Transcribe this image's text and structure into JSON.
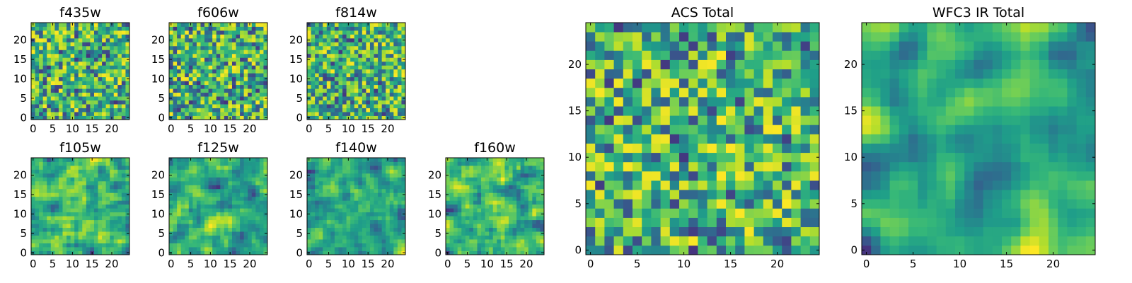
{
  "figure_title": "",
  "chart_data": [
    {
      "type": "heatmap",
      "title": "f435w",
      "grid": [
        25,
        25
      ],
      "colormap": "viridis",
      "seed": 11,
      "smooth": 0,
      "x_ticks": [
        0,
        5,
        10,
        15,
        20
      ],
      "y_ticks": [
        0,
        5,
        10,
        15,
        20
      ],
      "xlim": [
        0,
        24
      ],
      "ylim": [
        0,
        24
      ]
    },
    {
      "type": "heatmap",
      "title": "f606w",
      "grid": [
        25,
        25
      ],
      "colormap": "viridis",
      "seed": 22,
      "smooth": 0,
      "x_ticks": [
        0,
        5,
        10,
        15,
        20
      ],
      "y_ticks": [
        0,
        5,
        10,
        15,
        20
      ],
      "xlim": [
        0,
        24
      ],
      "ylim": [
        0,
        24
      ]
    },
    {
      "type": "heatmap",
      "title": "f814w",
      "grid": [
        25,
        25
      ],
      "colormap": "viridis",
      "seed": 33,
      "smooth": 0,
      "x_ticks": [
        0,
        5,
        10,
        15,
        20
      ],
      "y_ticks": [
        0,
        5,
        10,
        15,
        20
      ],
      "xlim": [
        0,
        24
      ],
      "ylim": [
        0,
        24
      ]
    },
    {
      "type": "heatmap",
      "title": "f105w",
      "grid": [
        25,
        25
      ],
      "colormap": "viridis",
      "seed": 44,
      "smooth": 1,
      "x_ticks": [
        0,
        5,
        10,
        15,
        20
      ],
      "y_ticks": [
        0,
        5,
        10,
        15,
        20
      ],
      "xlim": [
        0,
        24
      ],
      "ylim": [
        0,
        24
      ]
    },
    {
      "type": "heatmap",
      "title": "f125w",
      "grid": [
        25,
        25
      ],
      "colormap": "viridis",
      "seed": 55,
      "smooth": 1,
      "x_ticks": [
        0,
        5,
        10,
        15,
        20
      ],
      "y_ticks": [
        0,
        5,
        10,
        15,
        20
      ],
      "xlim": [
        0,
        24
      ],
      "ylim": [
        0,
        24
      ]
    },
    {
      "type": "heatmap",
      "title": "f140w",
      "grid": [
        25,
        25
      ],
      "colormap": "viridis",
      "seed": 66,
      "smooth": 1,
      "x_ticks": [
        0,
        5,
        10,
        15,
        20
      ],
      "y_ticks": [
        0,
        5,
        10,
        15,
        20
      ],
      "xlim": [
        0,
        24
      ],
      "ylim": [
        0,
        24
      ]
    },
    {
      "type": "heatmap",
      "title": "f160w",
      "grid": [
        25,
        25
      ],
      "colormap": "viridis",
      "seed": 77,
      "smooth": 1,
      "x_ticks": [
        0,
        5,
        10,
        15,
        20
      ],
      "y_ticks": [
        0,
        5,
        10,
        15,
        20
      ],
      "xlim": [
        0,
        24
      ],
      "ylim": [
        0,
        24
      ]
    },
    {
      "type": "heatmap",
      "title": "ACS Total",
      "grid": [
        25,
        25
      ],
      "colormap": "viridis",
      "seed": 88,
      "smooth": 0,
      "x_ticks": [
        0,
        5,
        10,
        15,
        20
      ],
      "y_ticks": [
        0,
        5,
        10,
        15,
        20
      ],
      "xlim": [
        0,
        24
      ],
      "ylim": [
        0,
        24
      ]
    },
    {
      "type": "heatmap",
      "title": "WFC3 IR Total",
      "grid": [
        25,
        25
      ],
      "colormap": "viridis",
      "seed": 99,
      "smooth": 2,
      "x_ticks": [
        0,
        5,
        10,
        15,
        20
      ],
      "y_ticks": [
        0,
        5,
        10,
        15,
        20
      ],
      "xlim": [
        0,
        24
      ],
      "ylim": [
        0,
        24
      ]
    }
  ]
}
